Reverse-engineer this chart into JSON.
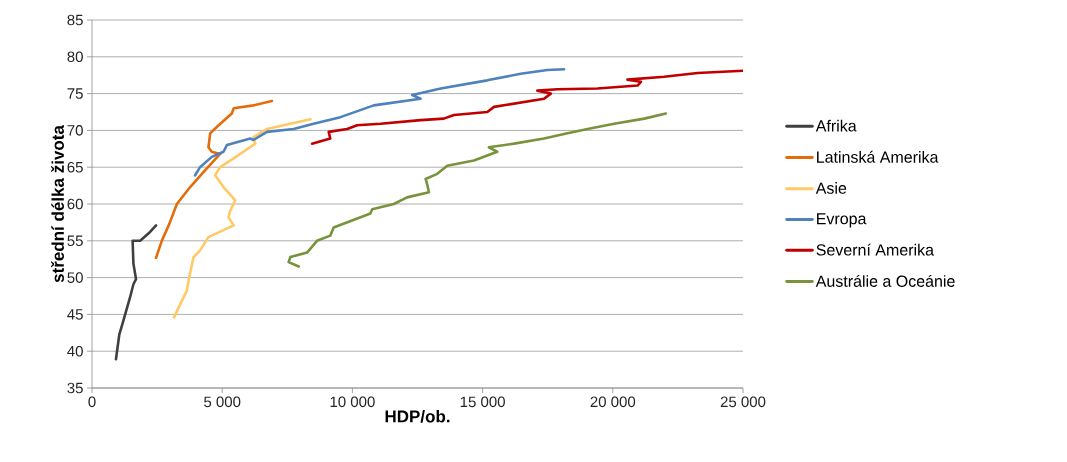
{
  "chart_data": {
    "type": "line",
    "xlabel": "HDP/ob.",
    "ylabel": "střední délka života",
    "xlim": [
      0,
      25000
    ],
    "ylim": [
      35,
      85
    ],
    "xticks": [
      0,
      {
        "value": 5000,
        "label": "5 000"
      },
      {
        "value": 10000,
        "label": "10 000"
      },
      {
        "value": 15000,
        "label": "15 000"
      },
      {
        "value": 20000,
        "label": "20 000"
      },
      {
        "value": 25000,
        "label": "25 000"
      }
    ],
    "yticks": [
      35,
      40,
      45,
      50,
      55,
      60,
      65,
      70,
      75,
      80,
      85
    ],
    "grid": "y",
    "legend": "right",
    "line_style": "solid",
    "series": [
      {
        "name": "Afrika",
        "color": "#404040",
        "x": [
          920,
          1050,
          1200,
          1460,
          1590,
          1690,
          1590,
          1560,
          1850,
          2230,
          2460
        ],
        "values": [
          38.9,
          42.3,
          44.1,
          47.3,
          49.1,
          49.8,
          51.9,
          55.0,
          55.0,
          56.2,
          57.1
        ]
      },
      {
        "name": "Latinská Amerika",
        "color": "#e46c0a",
        "x": [
          2460,
          2680,
          2970,
          3260,
          3770,
          4350,
          4920,
          4600,
          4470,
          4540,
          4800,
          5370,
          5440,
          6200,
          6910
        ],
        "values": [
          52.7,
          55.0,
          57.3,
          60.0,
          62.3,
          64.6,
          66.8,
          67.1,
          67.7,
          69.6,
          70.5,
          72.3,
          73.0,
          73.4,
          74.0
        ]
      },
      {
        "name": "Asie",
        "color": "#ffc966",
        "x": [
          3150,
          3390,
          3640,
          3710,
          3900,
          4150,
          4470,
          5440,
          5240,
          5310,
          5500,
          5050,
          4730,
          4920,
          5440,
          6270,
          6200,
          6720,
          7620,
          8390
        ],
        "values": [
          44.6,
          46.4,
          48.2,
          49.6,
          52.8,
          53.7,
          55.5,
          57.1,
          58.2,
          59.1,
          60.5,
          62.3,
          63.9,
          65.0,
          66.2,
          68.2,
          69.1,
          70.2,
          70.9,
          71.5
        ]
      },
      {
        "name": "Evropa",
        "color": "#4f81bd",
        "x": [
          3960,
          4150,
          4600,
          5050,
          5180,
          6080,
          6200,
          6720,
          7740,
          8510,
          9540,
          10820,
          12620,
          12300,
          13390,
          15180,
          16460,
          17490,
          18130
        ],
        "values": [
          63.9,
          65.0,
          66.4,
          67.1,
          68.0,
          68.9,
          68.7,
          69.8,
          70.2,
          70.9,
          71.8,
          73.4,
          74.3,
          74.8,
          75.7,
          76.8,
          77.7,
          78.2,
          78.3
        ]
      },
      {
        "name": "Severní Amerika",
        "color": "#c00000",
        "x": [
          8450,
          9150,
          9090,
          9800,
          10180,
          11080,
          12620,
          13510,
          13900,
          15180,
          15440,
          17360,
          17620,
          17100,
          17870,
          19410,
          20950,
          21080,
          20560,
          21970,
          23260,
          25000
        ],
        "values": [
          68.2,
          68.9,
          69.8,
          70.2,
          70.7,
          70.9,
          71.4,
          71.6,
          72.1,
          72.5,
          73.2,
          74.3,
          75.0,
          75.4,
          75.6,
          75.7,
          76.1,
          76.6,
          76.9,
          77.3,
          77.8,
          78.1
        ]
      },
      {
        "name": "Austrálie a Oceánie",
        "color": "#77933c",
        "x": [
          7940,
          7550,
          7620,
          8260,
          8640,
          9150,
          9280,
          10690,
          10760,
          11590,
          12100,
          12940,
          12870,
          12810,
          13260,
          13640,
          14670,
          15560,
          15240,
          16210,
          17360,
          18260,
          19030,
          20050,
          21210,
          22040
        ],
        "values": [
          51.5,
          52.1,
          52.8,
          53.4,
          55.0,
          55.7,
          56.8,
          58.7,
          59.3,
          60.0,
          60.9,
          61.6,
          62.7,
          63.4,
          64.1,
          65.2,
          65.9,
          67.1,
          67.7,
          68.2,
          68.9,
          69.6,
          70.2,
          70.9,
          71.6,
          72.3
        ]
      }
    ]
  }
}
